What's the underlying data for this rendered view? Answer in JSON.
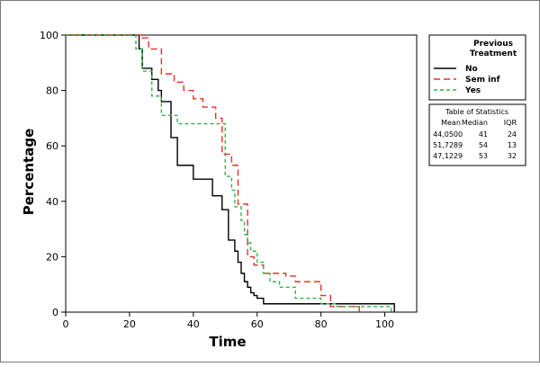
{
  "chart_data": {
    "type": "line",
    "step": true,
    "xlabel": "Time",
    "ylabel": "Percentage",
    "xlim": [
      0,
      110
    ],
    "ylim": [
      0,
      100
    ],
    "x_ticks": [
      0,
      20,
      40,
      60,
      80,
      100
    ],
    "y_ticks": [
      0,
      20,
      40,
      60,
      80,
      100
    ],
    "grid": false,
    "legend": {
      "title": "Previous Treatment",
      "placement": "right",
      "entries": [
        "No",
        "Sem inf",
        "Yes"
      ]
    },
    "series": [
      {
        "name": "No",
        "color": "#000000",
        "dash": "solid",
        "x": [
          0,
          22,
          23,
          24,
          27,
          29,
          30,
          33,
          35,
          40,
          46,
          49,
          51,
          53,
          54,
          55,
          56,
          57,
          58,
          59,
          60,
          62,
          71,
          103
        ],
        "y": [
          100,
          100,
          95,
          88,
          84,
          80,
          76,
          63,
          53,
          48,
          42,
          37,
          26,
          22,
          18,
          14,
          11,
          9,
          7,
          6,
          5,
          3,
          3,
          0
        ]
      },
      {
        "name": "Sem inf",
        "color": "#e8302b",
        "dash": "dashed",
        "x": [
          0,
          22,
          24,
          26,
          30,
          34,
          37,
          40,
          43,
          47,
          49,
          52,
          54,
          57,
          59,
          62,
          69,
          72,
          80,
          83,
          92
        ],
        "y": [
          100,
          100,
          99,
          95,
          86,
          83,
          80,
          77,
          74,
          70,
          57,
          53,
          39,
          20,
          17,
          14,
          13,
          11,
          6,
          2,
          0
        ]
      },
      {
        "name": "Yes",
        "color": "#33b24a",
        "dash": "dashed",
        "x": [
          0,
          21,
          22,
          24,
          27,
          30,
          35,
          41,
          47,
          50,
          52,
          53,
          55,
          56,
          57,
          58,
          60,
          62,
          64,
          67,
          72,
          80,
          85,
          102
        ],
        "y": [
          100,
          100,
          95,
          87,
          78,
          71,
          68,
          68,
          68,
          49,
          44,
          38,
          33,
          28,
          25,
          22,
          18,
          14,
          11,
          9,
          5,
          3,
          2,
          0
        ]
      }
    ],
    "stats_table": {
      "title": "Table of Statistics",
      "columns": [
        "Mean",
        "Median",
        "IQR"
      ],
      "rows": [
        [
          "44,0500",
          "41",
          "24"
        ],
        [
          "51,7289",
          "54",
          "13"
        ],
        [
          "47,1229",
          "53",
          "32"
        ]
      ]
    }
  }
}
